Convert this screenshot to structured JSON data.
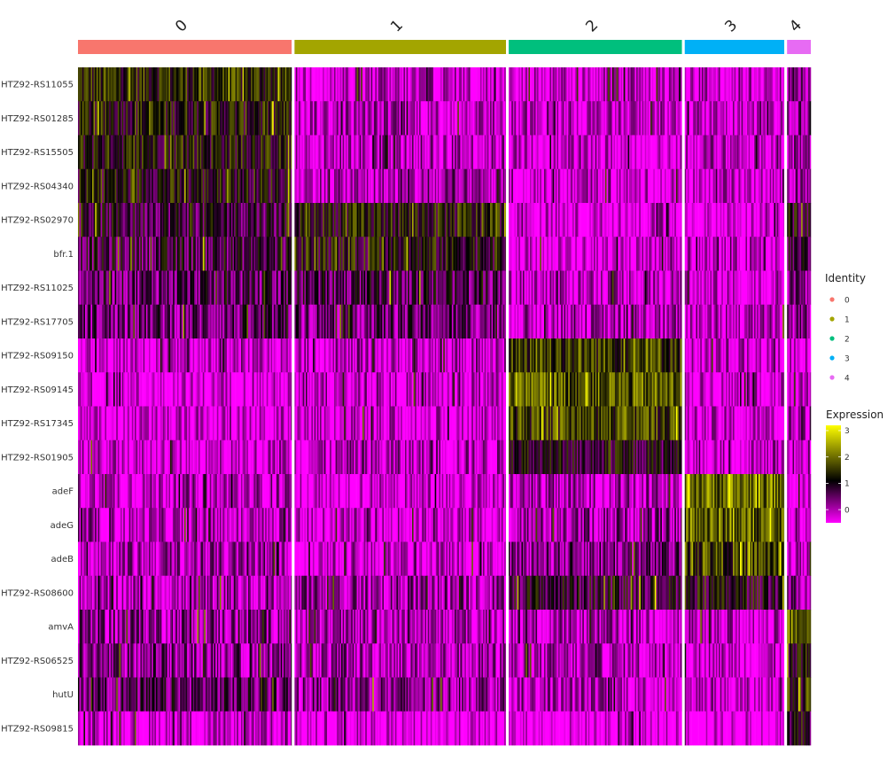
{
  "chart_data": {
    "type": "heatmap",
    "title": "",
    "xlabel": "",
    "ylabel": "",
    "genes": [
      "HTZ92-RS11055",
      "HTZ92-RS01285",
      "HTZ92-RS15505",
      "HTZ92-RS04340",
      "HTZ92-RS02970",
      "bfr.1",
      "HTZ92-RS11025",
      "HTZ92-RS17705",
      "HTZ92-RS09150",
      "HTZ92-RS09145",
      "HTZ92-RS17345",
      "HTZ92-RS01905",
      "adeF",
      "adeG",
      "adeB",
      "HTZ92-RS08600",
      "amvA",
      "HTZ92-RS06525",
      "hutU",
      "HTZ92-RS09815"
    ],
    "clusters": [
      {
        "label": "0",
        "color": "#F8766D",
        "cell_fraction": 0.296
      },
      {
        "label": "1",
        "color": "#A3A500",
        "cell_fraction": 0.293
      },
      {
        "label": "2",
        "color": "#00BF7D",
        "cell_fraction": 0.24
      },
      {
        "label": "3",
        "color": "#00B0F6",
        "cell_fraction": 0.138
      },
      {
        "label": "4",
        "color": "#E76BF3",
        "cell_fraction": 0.033
      }
    ],
    "mean_expression": [
      [
        1.4,
        -0.2,
        -0.3,
        -0.2,
        0.4
      ],
      [
        1.2,
        -0.1,
        -0.2,
        -0.2,
        0.3
      ],
      [
        1.2,
        -0.1,
        -0.3,
        -0.3,
        0.1
      ],
      [
        1.1,
        -0.1,
        -0.3,
        -0.3,
        0.1
      ],
      [
        0.8,
        1.2,
        -0.4,
        -0.6,
        1.0
      ],
      [
        0.7,
        1.1,
        -0.4,
        -0.4,
        0.8
      ],
      [
        0.5,
        0.6,
        -0.1,
        -0.3,
        0.2
      ],
      [
        0.4,
        0.4,
        -0.1,
        -0.2,
        0.1
      ],
      [
        -0.4,
        -0.2,
        1.6,
        -0.3,
        -0.3
      ],
      [
        -0.4,
        -0.3,
        1.8,
        -0.3,
        -0.3
      ],
      [
        -0.4,
        -0.3,
        1.6,
        -0.3,
        -0.2
      ],
      [
        -0.3,
        -0.1,
        0.9,
        -0.3,
        -0.1
      ],
      [
        -0.1,
        -0.3,
        -0.1,
        2.0,
        -0.4
      ],
      [
        -0.2,
        -0.3,
        0.1,
        1.8,
        -0.4
      ],
      [
        0.0,
        -0.3,
        0.3,
        1.6,
        -0.3
      ],
      [
        -0.1,
        0.1,
        0.9,
        1.0,
        0.3
      ],
      [
        0.2,
        -0.1,
        -0.1,
        -0.2,
        2.0
      ],
      [
        0.2,
        0.0,
        -0.1,
        -0.2,
        1.2
      ],
      [
        0.5,
        0.2,
        -0.1,
        -0.3,
        1.3
      ],
      [
        -0.3,
        -0.5,
        -0.5,
        -0.5,
        1.0
      ]
    ],
    "color_scale": {
      "min": -0.5,
      "max": 3.2,
      "stops": [
        {
          "value": -0.5,
          "color": "#FF00FF"
        },
        {
          "value": 1.1,
          "color": "#000000"
        },
        {
          "value": 3.2,
          "color": "#FFFF00"
        }
      ]
    },
    "legends": {
      "identity": {
        "title": "Identity",
        "entries": [
          "0",
          "1",
          "2",
          "3",
          "4"
        ]
      },
      "expression": {
        "title": "Expression",
        "ticks": [
          3,
          2,
          1,
          0
        ]
      }
    }
  }
}
